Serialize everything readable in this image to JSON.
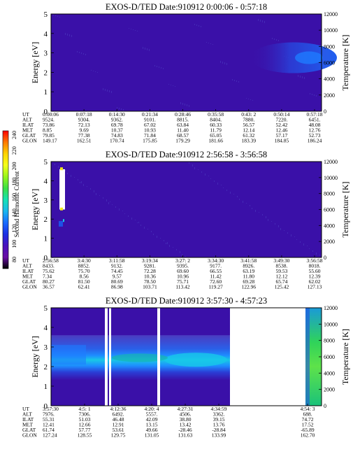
{
  "colors": {
    "background": "#ffffff",
    "plot_fill_deep": "#3a10a8",
    "plot_fill_mid": "#4b3cc0",
    "band_blue": "#1f4fe6",
    "band_bright": "#1e7bff",
    "band_cyan": "#18c8e8",
    "band_teal": "#17b3b0",
    "green": "#3de04b",
    "yellow": "#f0e61e",
    "orange": "#ff8a00",
    "red": "#ff1a1a"
  },
  "colorbar": {
    "label": "Second Harmonic Current",
    "ticks": [
      "240",
      "220",
      "200",
      "180",
      "160",
      "140",
      "120",
      "100",
      "80"
    ],
    "colors": [
      "#ff0000",
      "#ff7a00",
      "#ffd400",
      "#f4ff1a",
      "#98f51a",
      "#3be046",
      "#14e2b4",
      "#1ab7ee",
      "#1a6cff",
      "#1c2fe4",
      "#4912bd",
      "#6a0ea6",
      "#000000"
    ]
  },
  "chart_data": [
    {
      "type": "heatmap",
      "title": "EXOS-D/TED   Date:910912  0:00:06 - 0:57:18",
      "ylabel": "Energy [eV]",
      "ylabel_right": "Temperature [K]",
      "ylim": [
        0,
        5
      ],
      "ylim_right": [
        0,
        12000
      ],
      "yticks": [
        "0",
        "1",
        "2",
        "3",
        "4",
        "5"
      ],
      "yticks_right": [
        "0",
        "2000",
        "4000",
        "6000",
        "8000",
        "10000",
        "12000"
      ],
      "table_rows": [
        "UT",
        "ALT",
        "ILAT",
        "MLT",
        "GLAT",
        "GLON"
      ],
      "table": [
        [
          "0:00:06",
          "9524.",
          "73.86",
          "8.85",
          "79.85",
          "149.17"
        ],
        [
          "0:07:18",
          "9304.",
          "72.13",
          "9.69",
          "77.38",
          "162.51"
        ],
        [
          "0:14:30",
          "9362.",
          "69.78",
          "10.37",
          "74.83",
          "170.74"
        ],
        [
          "0:21:34",
          "9101.",
          "67.02",
          "10.93",
          "71.84",
          "175.85"
        ],
        [
          "0:28:46",
          "8815.",
          "63.84",
          "11.40",
          "68.57",
          "179.29"
        ],
        [
          "0:35:58",
          "8404.",
          "60.33",
          "11.79",
          "65.05",
          "181.66"
        ],
        [
          "0:43: 2",
          "7880.",
          "56.57",
          "12.14",
          "61.32",
          "183.39"
        ],
        [
          "0:50:14",
          "7220.",
          "52.42",
          "12.46",
          "57.17",
          "184.85"
        ],
        [
          "0:57:18",
          "6451.",
          "48.08",
          "12.76",
          "52.73",
          "186.24"
        ]
      ]
    },
    {
      "type": "heatmap",
      "title": "EXOS-D/TED   Date:910912  2:56:58 - 3:56:58",
      "ylabel": "Energy [eV]",
      "ylabel_right": "Temperature [K]",
      "ylim": [
        0,
        5
      ],
      "ylim_right": [
        0,
        12000
      ],
      "yticks": [
        "0",
        "1",
        "2",
        "3",
        "4",
        "5"
      ],
      "yticks_right": [
        "0",
        "2000",
        "4000",
        "6000",
        "8000",
        "10000",
        "12000"
      ],
      "table_rows": [
        "UT",
        "ALT",
        "ILAT",
        "MLT",
        "GLAT",
        "GLON"
      ],
      "table": [
        [
          "2:56:58",
          "8433.",
          "75.62",
          "7.34",
          "80.27",
          "36.57"
        ],
        [
          "3:4:30",
          "8852.",
          "75.70",
          "8.56",
          "81.50",
          "62.41"
        ],
        [
          "3:11:58",
          "9132.",
          "74.45",
          "9.57",
          "80.69",
          "86.98"
        ],
        [
          "3:19:34",
          "9281.",
          "72.28",
          "10.36",
          "78.50",
          "103.71"
        ],
        [
          "3:27: 2",
          "9395.",
          "69.60",
          "10.96",
          "75.71",
          "113.42"
        ],
        [
          "3:34:30",
          "9177.",
          "66.55",
          "11.42",
          "72.60",
          "119.27"
        ],
        [
          "3:41:58",
          "8926.",
          "63.19",
          "11.80",
          "69.28",
          "122.96"
        ],
        [
          "3:49:30",
          "8538.",
          "59.53",
          "12.12",
          "65.74",
          "125.42"
        ],
        [
          "3:56:58",
          "8018.",
          "55.60",
          "12.39",
          "62.02",
          "127.13"
        ]
      ]
    },
    {
      "type": "heatmap",
      "title": "EXOS-D/TED   Date:910912  3:57:30 - 4:57:23",
      "ylabel": "Energy [eV]",
      "ylabel_right": "Temperature [K]",
      "ylim": [
        0,
        5
      ],
      "ylim_right": [
        0,
        12000
      ],
      "yticks": [
        "0",
        "1",
        "2",
        "3",
        "4",
        "5"
      ],
      "yticks_right": [
        "0",
        "2000",
        "4000",
        "6000",
        "8000",
        "10000",
        "12000"
      ],
      "table_rows": [
        "UT",
        "ALT",
        "ILAT",
        "MLT",
        "GLAT",
        "GLON"
      ],
      "table": [
        [
          "3:57:30",
          "7976.",
          "55.31",
          "12.41",
          "61.74",
          "127.24"
        ],
        [
          "4:5: 1",
          "7306.",
          "51.03",
          "12.66",
          "57.77",
          "128.55"
        ],
        [
          "4:12:36",
          "6492.",
          "46.48",
          "12.91",
          "53.61",
          "129.75"
        ],
        [
          "4:20: 4",
          "5557.",
          "42.09",
          "13.15",
          "49.66",
          "131.05"
        ],
        [
          "4:27:31",
          "4506.",
          "38.80",
          "13.42",
          "-28.46",
          "131.63"
        ],
        [
          "4:34:59",
          "3362.",
          "39.15",
          "13.76",
          "-28.84",
          "133.99"
        ],
        [
          "4:54: 3",
          "688.",
          "74.72",
          "17.52",
          "-65.89",
          "162.70"
        ]
      ]
    }
  ]
}
